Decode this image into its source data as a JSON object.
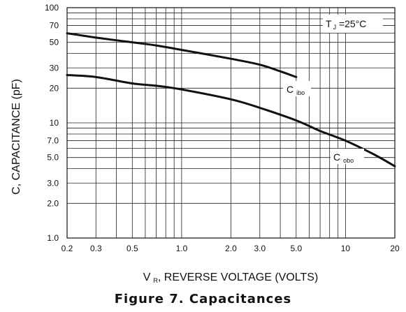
{
  "chart_data": {
    "type": "line",
    "title": "Figure 7. Capacitances",
    "xlabel": {
      "main": "V",
      "sub": "R",
      "rest": ", REVERSE VOLTAGE (VOLTS)"
    },
    "ylabel": "C, CAPACITANCE (pF)",
    "xscale": "log",
    "yscale": "log",
    "xlim": [
      0.2,
      20
    ],
    "ylim": [
      1.0,
      100
    ],
    "grid": true,
    "x_ticks": [
      {
        "value": 0.2,
        "label": "0.2"
      },
      {
        "value": 0.3,
        "label": "0.3"
      },
      {
        "value": 0.5,
        "label": "0.5"
      },
      {
        "value": 1.0,
        "label": "1.0"
      },
      {
        "value": 2.0,
        "label": "2.0"
      },
      {
        "value": 3.0,
        "label": "3.0"
      },
      {
        "value": 5.0,
        "label": "5.0"
      },
      {
        "value": 10,
        "label": "10"
      },
      {
        "value": 20,
        "label": "20"
      }
    ],
    "y_ticks": [
      {
        "value": 1.0,
        "label": "1.0"
      },
      {
        "value": 2.0,
        "label": "2.0"
      },
      {
        "value": 3.0,
        "label": "3.0"
      },
      {
        "value": 5.0,
        "label": "5.0"
      },
      {
        "value": 7.0,
        "label": "7.0"
      },
      {
        "value": 10,
        "label": "10"
      },
      {
        "value": 20,
        "label": "20"
      },
      {
        "value": 30,
        "label": "30"
      },
      {
        "value": 50,
        "label": "50"
      },
      {
        "value": 70,
        "label": "70"
      },
      {
        "value": 100,
        "label": "100"
      }
    ],
    "series": [
      {
        "name": {
          "main": "C",
          "sub": "ibo"
        },
        "x": [
          0.2,
          0.3,
          0.5,
          0.7,
          1.0,
          2.0,
          3.0,
          4.0,
          5.0
        ],
        "y": [
          60,
          55,
          50,
          47,
          43,
          36,
          32,
          28,
          25
        ]
      },
      {
        "name": {
          "main": "C",
          "sub": "obo"
        },
        "x": [
          0.2,
          0.3,
          0.5,
          0.7,
          1.0,
          2.0,
          3.0,
          5.0,
          7.0,
          10,
          15,
          20
        ],
        "y": [
          26,
          25,
          22,
          21,
          19.5,
          16,
          13.5,
          10.5,
          8.5,
          7,
          5.3,
          4.2
        ]
      }
    ],
    "annotation": {
      "main": "T",
      "sub": "J",
      "rest": " =25°C"
    }
  }
}
